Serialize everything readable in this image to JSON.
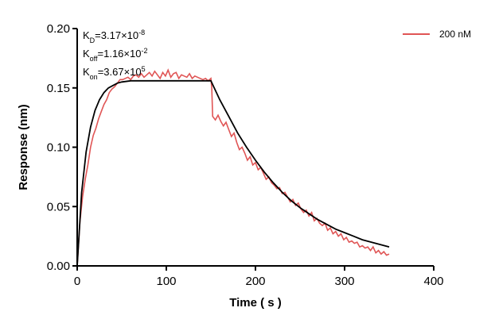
{
  "chart_data": {
    "type": "line",
    "xlabel": "Time ( s )",
    "ylabel": "Response (nm)",
    "xlim": [
      0,
      400
    ],
    "ylim": [
      0,
      0.2
    ],
    "x_ticks": [
      "0",
      "100",
      "200",
      "300",
      "400"
    ],
    "y_ticks": [
      "0.00",
      "0.05",
      "0.10",
      "0.15",
      "0.20"
    ],
    "annotation": {
      "kd": {
        "prefix": "K",
        "sub": "D",
        "base": "=3.17×10",
        "exp": "-8"
      },
      "koff": {
        "prefix": "K",
        "sub": "off",
        "base": "=1.16×10",
        "exp": "-2"
      },
      "kon": {
        "prefix": "K",
        "sub": "on",
        "base": "=3.67×10",
        "exp": "5"
      }
    },
    "legend": {
      "label": "200 nM",
      "position": "top-right"
    },
    "colors": {
      "measured": "#E05555",
      "fit": "#000000"
    },
    "series": [
      {
        "name": "200 nM",
        "x": [
          0,
          3,
          6,
          9,
          12,
          15,
          18,
          21,
          24,
          27,
          30,
          33,
          36,
          39,
          42,
          45,
          48,
          51,
          54,
          57,
          60,
          63,
          66,
          69,
          72,
          75,
          78,
          81,
          84,
          87,
          90,
          93,
          96,
          99,
          102,
          105,
          108,
          111,
          114,
          117,
          120,
          123,
          126,
          129,
          132,
          135,
          138,
          141,
          144,
          147,
          150,
          151,
          152,
          155,
          158,
          161,
          164,
          167,
          170,
          173,
          176,
          179,
          182,
          185,
          188,
          191,
          194,
          197,
          200,
          203,
          206,
          209,
          212,
          215,
          218,
          221,
          224,
          227,
          230,
          233,
          236,
          239,
          242,
          245,
          248,
          251,
          254,
          257,
          260,
          263,
          266,
          269,
          272,
          275,
          278,
          281,
          284,
          287,
          290,
          293,
          296,
          299,
          302,
          305,
          308,
          311,
          314,
          317,
          320,
          323,
          326,
          329,
          332,
          335,
          338,
          341,
          344,
          347,
          350
        ],
        "values": [
          0.0,
          0.037,
          0.058,
          0.073,
          0.085,
          0.1,
          0.11,
          0.116,
          0.124,
          0.13,
          0.136,
          0.14,
          0.146,
          0.149,
          0.151,
          0.154,
          0.157,
          0.157,
          0.158,
          0.159,
          0.157,
          0.16,
          0.161,
          0.159,
          0.162,
          0.159,
          0.161,
          0.163,
          0.16,
          0.164,
          0.161,
          0.158,
          0.163,
          0.16,
          0.165,
          0.159,
          0.162,
          0.163,
          0.158,
          0.161,
          0.16,
          0.159,
          0.162,
          0.158,
          0.16,
          0.159,
          0.158,
          0.157,
          0.158,
          0.156,
          0.158,
          0.15,
          0.126,
          0.123,
          0.127,
          0.122,
          0.118,
          0.121,
          0.115,
          0.109,
          0.112,
          0.104,
          0.098,
          0.1,
          0.095,
          0.089,
          0.092,
          0.085,
          0.087,
          0.081,
          0.083,
          0.078,
          0.073,
          0.075,
          0.07,
          0.068,
          0.065,
          0.066,
          0.061,
          0.062,
          0.058,
          0.054,
          0.056,
          0.051,
          0.053,
          0.048,
          0.045,
          0.047,
          0.042,
          0.045,
          0.038,
          0.04,
          0.036,
          0.034,
          0.036,
          0.03,
          0.032,
          0.027,
          0.029,
          0.025,
          0.027,
          0.022,
          0.024,
          0.02,
          0.021,
          0.019,
          0.02,
          0.016,
          0.017,
          0.015,
          0.016,
          0.013,
          0.016,
          0.011,
          0.013,
          0.01,
          0.012,
          0.009,
          0.01
        ]
      },
      {
        "name": "",
        "x": [
          0,
          5,
          10,
          15,
          20,
          25,
          30,
          35,
          40,
          45,
          50,
          60,
          70,
          80,
          90,
          100,
          110,
          120,
          130,
          140,
          150,
          155,
          160,
          170,
          180,
          190,
          200,
          210,
          220,
          230,
          240,
          250,
          260,
          270,
          280,
          290,
          300,
          310,
          320,
          330,
          340,
          350
        ],
        "values": [
          0.0,
          0.062,
          0.096,
          0.117,
          0.131,
          0.14,
          0.146,
          0.15,
          0.152,
          0.154,
          0.155,
          0.156,
          0.156,
          0.156,
          0.156,
          0.156,
          0.156,
          0.156,
          0.156,
          0.156,
          0.156,
          0.148,
          0.14,
          0.126,
          0.112,
          0.1,
          0.089,
          0.079,
          0.07,
          0.062,
          0.055,
          0.049,
          0.044,
          0.039,
          0.035,
          0.031,
          0.028,
          0.025,
          0.022,
          0.02,
          0.018,
          0.016
        ]
      }
    ]
  }
}
